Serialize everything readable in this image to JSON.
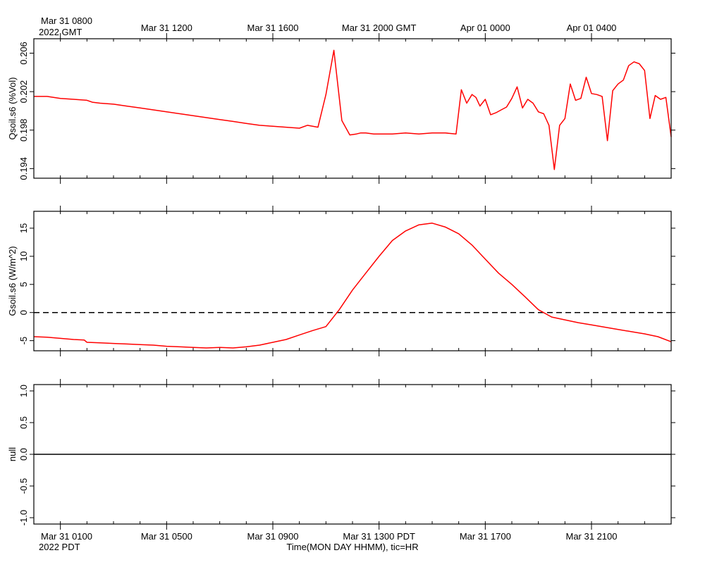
{
  "chart_data": [
    {
      "type": "line",
      "ylabel": "Qsoil.s6 (%Vol)",
      "ylim": [
        0.193,
        0.2075
      ],
      "ytick_values": [
        0.194,
        0.198,
        0.202,
        0.206
      ],
      "ytick_labels": [
        "0.194",
        "0.198",
        "0.202",
        "0.206"
      ],
      "series": [
        {
          "color": "#ff0000",
          "x": [
            0,
            0.5,
            1,
            1.5,
            2,
            2.2,
            2.5,
            3,
            3.5,
            4,
            4.5,
            5,
            5.5,
            6,
            6.5,
            7,
            7.5,
            8,
            8.5,
            9,
            9.5,
            10,
            10.3,
            10.7,
            11,
            11.3,
            11.6,
            11.9,
            12.15,
            12.3,
            12.5,
            12.8,
            13,
            13.5,
            14,
            14.5,
            15,
            15.5,
            15.9,
            16.1,
            16.3,
            16.5,
            16.65,
            16.8,
            17,
            17.2,
            17.4,
            17.6,
            17.8,
            18,
            18.2,
            18.4,
            18.6,
            18.8,
            19,
            19.2,
            19.4,
            19.6,
            19.8,
            20,
            20.2,
            20.4,
            20.6,
            20.8,
            21,
            21.2,
            21.4,
            21.6,
            21.8,
            22,
            22.2,
            22.4,
            22.6,
            22.8,
            23,
            23.2,
            23.4,
            23.6,
            23.8,
            24
          ],
          "y": [
            0.2015,
            0.2015,
            0.2013,
            0.2012,
            0.2011,
            0.2009,
            0.2008,
            0.2007,
            0.2005,
            0.2003,
            0.2001,
            0.1999,
            0.1997,
            0.1995,
            0.1993,
            0.1991,
            0.1989,
            0.1987,
            0.1985,
            0.1984,
            0.1983,
            0.1982,
            0.1985,
            0.1983,
            0.2017,
            0.2063,
            0.199,
            0.1975,
            0.1976,
            0.1977,
            0.1977,
            0.1976,
            0.1976,
            0.1976,
            0.1977,
            0.1976,
            0.1977,
            0.1977,
            0.1976,
            0.2022,
            0.2008,
            0.2017,
            0.2014,
            0.2005,
            0.2012,
            0.1996,
            0.1998,
            0.2001,
            0.2004,
            0.2013,
            0.2025,
            0.2003,
            0.2012,
            0.2008,
            0.1999,
            0.1997,
            0.1985,
            0.1939,
            0.1985,
            0.1992,
            0.2028,
            0.2011,
            0.2013,
            0.2035,
            0.2018,
            0.2017,
            0.2015,
            0.1969,
            0.2021,
            0.2028,
            0.2032,
            0.2047,
            0.2051,
            0.2049,
            0.2042,
            0.1992,
            0.2016,
            0.2012,
            0.2014,
            0.1973
          ]
        }
      ]
    },
    {
      "type": "line",
      "ylabel": "Gsoil.s6 (W/m^2)",
      "ylim": [
        -6.8,
        18
      ],
      "ytick_values": [
        -5,
        0,
        5,
        10,
        15
      ],
      "ytick_labels": [
        "-5",
        "0",
        "5",
        "10",
        "15"
      ],
      "reference_line": {
        "y": 0,
        "style": "dashed"
      },
      "series": [
        {
          "color": "#ff0000",
          "x": [
            0,
            0.5,
            1,
            1.5,
            1.9,
            2,
            2.5,
            3,
            3.5,
            4,
            4.5,
            5,
            5.5,
            6,
            6.5,
            7,
            7.5,
            8,
            8.5,
            9,
            9.5,
            10,
            10.5,
            11,
            11.5,
            12,
            12.5,
            13,
            13.5,
            14,
            14.5,
            15,
            15.5,
            16,
            16.5,
            17,
            17.5,
            18,
            18.5,
            19,
            19.5,
            20,
            20.5,
            21,
            21.5,
            22,
            22.5,
            23,
            23.5,
            24
          ],
          "y": [
            -4.3,
            -4.4,
            -4.6,
            -4.8,
            -4.9,
            -5.3,
            -5.4,
            -5.5,
            -5.6,
            -5.7,
            -5.8,
            -6.0,
            -6.1,
            -6.2,
            -6.3,
            -6.2,
            -6.3,
            -6.1,
            -5.8,
            -5.3,
            -4.8,
            -4.0,
            -3.2,
            -2.5,
            0.5,
            4.0,
            7.0,
            10.0,
            12.8,
            14.5,
            15.6,
            15.9,
            15.2,
            14.0,
            12.0,
            9.5,
            7.0,
            5.0,
            2.8,
            0.5,
            -0.8,
            -1.3,
            -1.8,
            -2.2,
            -2.6,
            -3.0,
            -3.4,
            -3.8,
            -4.3,
            -5.2
          ]
        }
      ]
    },
    {
      "type": "line",
      "ylabel": "null",
      "ylim": [
        -1.1,
        1.1
      ],
      "ytick_values": [
        -1.0,
        -0.5,
        0.0,
        0.5,
        1.0
      ],
      "ytick_labels": [
        "-1.0",
        "-0.5",
        "0.0",
        "0.5",
        "1.0"
      ],
      "series": [
        {
          "color": "#000000",
          "x": [
            0,
            24
          ],
          "y": [
            0,
            0
          ]
        }
      ]
    }
  ],
  "time_axis": {
    "xlim_hours": [
      0,
      24
    ],
    "hours_before_first_tick": 1,
    "tick_interval_hours": 4,
    "top_origin_line1": "Mar 31 0800",
    "top_origin_line2": "2022 GMT",
    "top_major_labels": [
      "Mar 31 1200",
      "Mar 31 1600",
      "Mar 31 2000 GMT",
      "Apr 01 0000",
      "Apr 01 0400"
    ],
    "bottom_first_label": "Mar 31 0100",
    "bottom_origin_line2": "2022 PDT",
    "bottom_major_labels": [
      "Mar 31 0500",
      "Mar 31 0900",
      "Mar 31 1300 PDT",
      "Mar 31 1700",
      "Mar 31 2100"
    ],
    "xlabel": "Time(MON DAY HHMM), tic=HR"
  }
}
